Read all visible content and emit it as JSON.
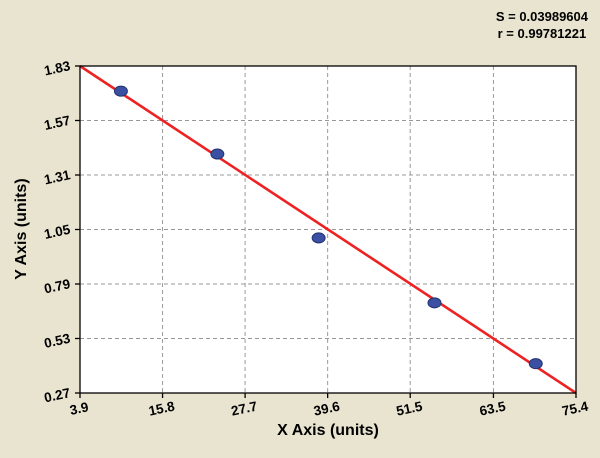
{
  "stats": {
    "s_label": "S = 0.03989604",
    "r_label": "r = 0.99781221"
  },
  "chart_data": {
    "type": "scatter",
    "title": "",
    "xlabel": "X Axis (units)",
    "ylabel": "Y Axis (units)",
    "x_tick_labels": [
      "3.9",
      "15.8",
      "27.7",
      "39.6",
      "51.5",
      "63.5",
      "75.4"
    ],
    "y_tick_labels": [
      "0.27",
      "0.53",
      "0.79",
      "1.05",
      "1.31",
      "1.57",
      "1.83"
    ],
    "xlim": [
      3.9,
      75.4
    ],
    "ylim": [
      0.27,
      1.83
    ],
    "grid": "dashed",
    "legend": "none",
    "points": [
      {
        "x": 9.8,
        "y": 1.71
      },
      {
        "x": 23.7,
        "y": 1.41
      },
      {
        "x": 38.3,
        "y": 1.01
      },
      {
        "x": 55.0,
        "y": 0.7
      },
      {
        "x": 69.6,
        "y": 0.41
      }
    ],
    "fit_line": {
      "x1": 3.9,
      "y1": 1.83,
      "x2": 75.4,
      "y2": 0.27
    },
    "fit_stats": {
      "S": 0.03989604,
      "r": 0.99781221
    },
    "colors": {
      "background": "#e8e4d0",
      "plot_background": "#ffffff",
      "grid": "#999999",
      "line": "#ee2222",
      "point_fill": "#3a50a2",
      "point_edge": "#22316e",
      "axis": "#000000"
    }
  }
}
